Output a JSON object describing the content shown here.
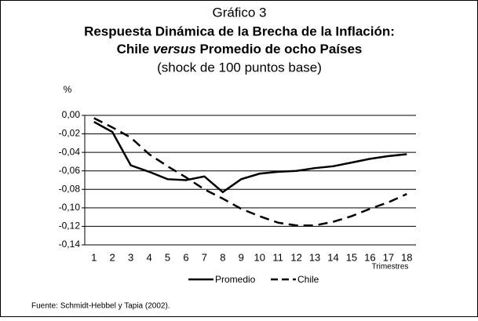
{
  "chart_data": {
    "type": "line",
    "title": "Gráfico 3",
    "heading": "Respuesta Dinámica de la Brecha de la Inflación:",
    "heading2": [
      "Chile",
      "versus",
      "Promedio de ocho Países"
    ],
    "subtitle": "(shock de 100 puntos base)",
    "y_label": "%",
    "x_label": "Trimestres",
    "source": "Fuente: Schmidt-Hebbel y Tapia (2002).",
    "categories": [
      "1",
      "2",
      "3",
      "4",
      "5",
      "6",
      "7",
      "8",
      "9",
      "10",
      "11",
      "12",
      "13",
      "14",
      "15",
      "16",
      "17",
      "18"
    ],
    "series": [
      {
        "name": "Promedio",
        "color": "#000000",
        "dash": "solid",
        "values": [
          -0.007,
          -0.018,
          -0.054,
          -0.061,
          -0.069,
          -0.07,
          -0.066,
          -0.083,
          -0.069,
          -0.063,
          -0.061,
          -0.06,
          -0.057,
          -0.055,
          -0.051,
          -0.047,
          -0.044,
          -0.042
        ]
      },
      {
        "name": "Chile",
        "color": "#000000",
        "dash": "dashed",
        "values": [
          -0.003,
          -0.013,
          -0.024,
          -0.042,
          -0.055,
          -0.067,
          -0.08,
          -0.09,
          -0.101,
          -0.109,
          -0.116,
          -0.119,
          -0.119,
          -0.115,
          -0.109,
          -0.101,
          -0.094,
          -0.085
        ]
      }
    ],
    "ylim": [
      -0.14,
      0
    ],
    "yticks": [
      {
        "value": 0,
        "label": "0,00"
      },
      {
        "value": -0.02,
        "label": "-0,02"
      },
      {
        "value": -0.04,
        "label": "-0,04"
      },
      {
        "value": -0.06,
        "label": "-0,06"
      },
      {
        "value": -0.08,
        "label": "-0,08"
      },
      {
        "value": -0.1,
        "label": "-0,10"
      },
      {
        "value": -0.12,
        "label": "-0,12"
      },
      {
        "value": -0.14,
        "label": "-0,14"
      }
    ],
    "grid": true,
    "legend": "bottom"
  }
}
